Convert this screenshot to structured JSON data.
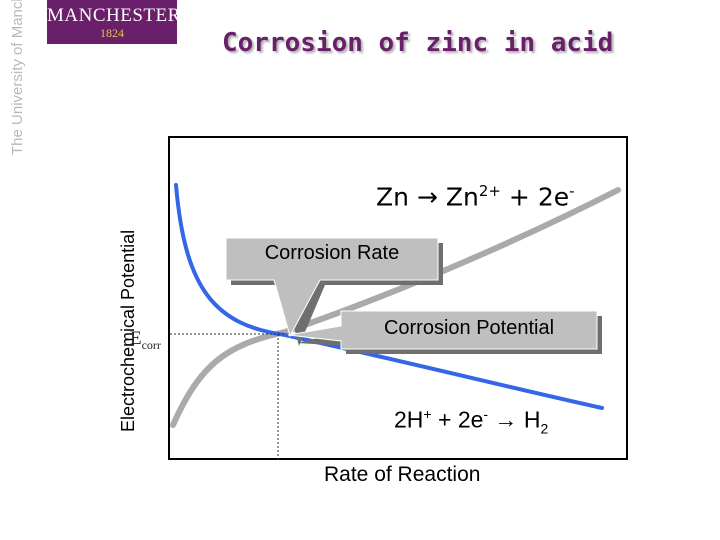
{
  "logo": {
    "name": "MANCHESTER",
    "year": "1824",
    "vertical_text": "The University of Manchester"
  },
  "title": "Corrosion of zinc in acid",
  "y_axis_label": "Electrochemical Potential",
  "x_axis_label": "Rate of Reaction",
  "anodic_reaction": {
    "lhs": "Zn",
    "arrow": "→",
    "product": "Zn",
    "charge": "2+",
    "plus": "+",
    "electrons": "2e",
    "electron_sign": "-"
  },
  "cathodic_reaction": {
    "reactant": "2H",
    "reactant_charge": "+",
    "plus": "+",
    "electrons": "2e",
    "electron_sign": "-",
    "arrow": "→",
    "product": "H",
    "product_sub": "2"
  },
  "callouts": {
    "rate": "Corrosion Rate",
    "potential": "Corrosion Potential"
  },
  "ecorr": {
    "symbol": "E",
    "subscript": "corr"
  },
  "colors": {
    "brand_purple": "#6a1f6b",
    "brand_gold": "#e8c24a",
    "anodic_curve": "#aaaaaa",
    "cathodic_curve": "#3366e8",
    "callout_fill": "#bfbfbf"
  }
}
